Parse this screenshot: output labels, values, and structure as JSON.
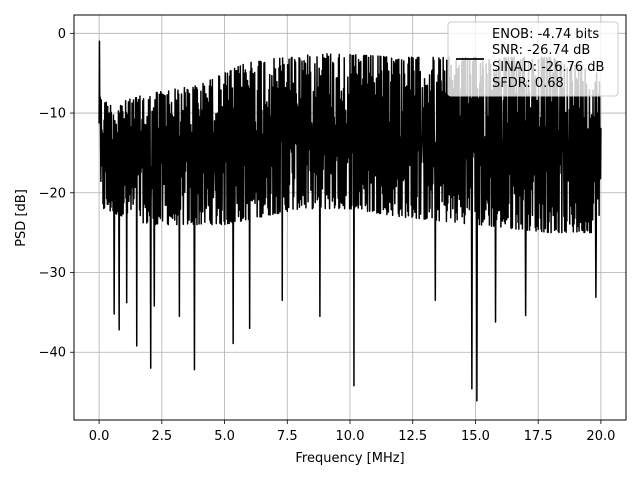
{
  "chart_data": {
    "type": "line",
    "xlabel": "Frequency [MHz]",
    "ylabel": "PSD [dB]",
    "xlim": [
      -1.0,
      21.0
    ],
    "ylim": [
      -48.5,
      2.3
    ],
    "xticks": [
      0.0,
      2.5,
      5.0,
      7.5,
      10.0,
      12.5,
      15.0,
      17.5,
      20.0
    ],
    "xtick_labels": [
      "0.0",
      "2.5",
      "5.0",
      "7.5",
      "10.0",
      "12.5",
      "15.0",
      "17.5",
      "20.0"
    ],
    "yticks": [
      0,
      -10,
      -20,
      -30,
      -40
    ],
    "ytick_labels": [
      "0",
      "−10",
      "−20",
      "−30",
      "−40"
    ],
    "grid": true,
    "legend_position": "top-right",
    "legend_lines": [
      "ENOB: -4.74 bits",
      "SNR: -26.74 dB",
      "SINAD: -26.76 dB",
      "SFDR: 0.68"
    ],
    "series": [
      {
        "color": "#000000",
        "x_range": [
          0.0,
          20.0
        ],
        "noise_upper_envelope": [
          [
            0.0,
            -8
          ],
          [
            0.5,
            -9
          ],
          [
            2.0,
            -7.5
          ],
          [
            4.0,
            -6.5
          ],
          [
            6.0,
            -3.5
          ],
          [
            9.0,
            -2.5
          ],
          [
            12.0,
            -3
          ],
          [
            15.0,
            -3
          ],
          [
            18.0,
            -3
          ],
          [
            20.0,
            -5
          ]
        ],
        "noise_lower_envelope": [
          [
            0.0,
            -22
          ],
          [
            2.0,
            -24
          ],
          [
            5.0,
            -24
          ],
          [
            8.0,
            -22
          ],
          [
            10.0,
            -22
          ],
          [
            12.0,
            -23
          ],
          [
            15.0,
            -24
          ],
          [
            18.0,
            -25
          ],
          [
            20.0,
            -25
          ]
        ],
        "peaks": [
          [
            0.02,
            -1.0
          ],
          [
            0.04,
            -8.0
          ]
        ],
        "notches": [
          [
            0.6,
            -35.2
          ],
          [
            0.8,
            -37.2
          ],
          [
            1.1,
            -33.8
          ],
          [
            1.5,
            -39.2
          ],
          [
            2.05,
            -42.0
          ],
          [
            2.2,
            -34.2
          ],
          [
            3.2,
            -35.5
          ],
          [
            3.8,
            -42.2
          ],
          [
            5.35,
            -38.9
          ],
          [
            6.0,
            -37.0
          ],
          [
            7.3,
            -33.5
          ],
          [
            8.8,
            -35.5
          ],
          [
            10.15,
            -44.2
          ],
          [
            13.4,
            -33.5
          ],
          [
            14.85,
            -44.6
          ],
          [
            15.05,
            -46.1
          ],
          [
            15.8,
            -36.2
          ],
          [
            17.0,
            -35.4
          ],
          [
            19.8,
            -33.1
          ]
        ]
      }
    ]
  }
}
